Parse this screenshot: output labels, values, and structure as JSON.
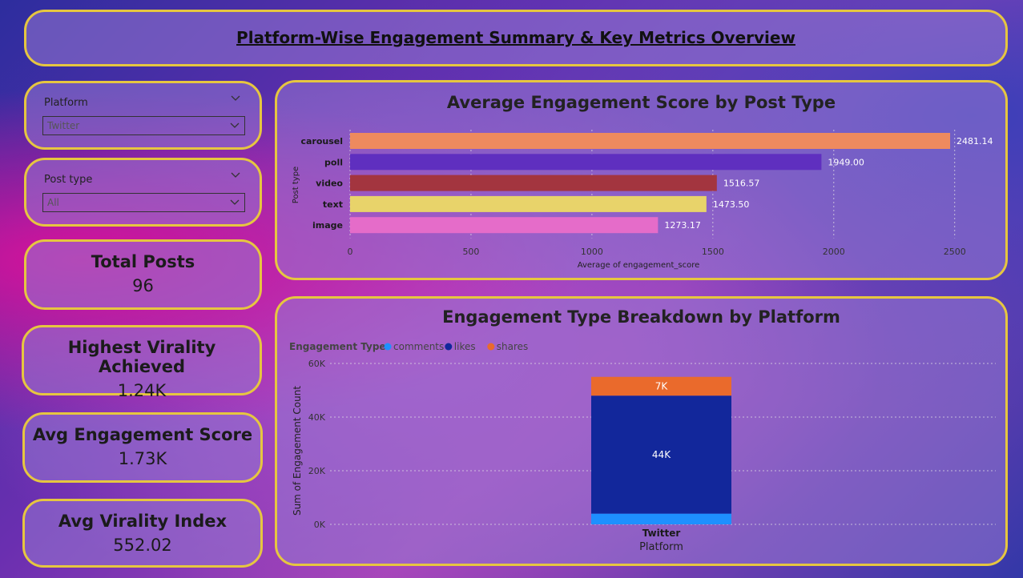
{
  "header": {
    "title": "Platform-Wise Engagement Summary & Key Metrics Overview"
  },
  "slicers": {
    "platform": {
      "label": "Platform",
      "value": "Twitter"
    },
    "post_type": {
      "label": "Post type",
      "value": "All"
    }
  },
  "cards": {
    "total_posts": {
      "label": "Total Posts",
      "value": "96"
    },
    "highest_virality": {
      "label": "Highest Virality Achieved",
      "value": "1.24K"
    },
    "avg_engagement": {
      "label": "Avg Engagement Score",
      "value": "1.73K"
    },
    "avg_virality": {
      "label": "Avg Virality Index",
      "value": "552.02"
    }
  },
  "chart_data": [
    {
      "type": "bar",
      "orientation": "horizontal",
      "title": "Average Engagement Score by Post Type",
      "xlabel": "Average of engagement_score",
      "ylabel": "Post type",
      "categories": [
        "carousel",
        "poll",
        "video",
        "text",
        "image"
      ],
      "values": [
        2481.14,
        1949.0,
        1516.57,
        1473.5,
        1273.17
      ],
      "value_labels": [
        "2481.14",
        "1949.00",
        "1516.57",
        "1473.50",
        "1273.17"
      ],
      "colors": [
        "#ee8a5e",
        "#5f2fbf",
        "#a3353f",
        "#e8d36a",
        "#e56cc9"
      ],
      "xlim": [
        0,
        2650
      ],
      "xticks": [
        0,
        500,
        1000,
        1500,
        2000,
        2500
      ],
      "xtick_labels": [
        "0",
        "500",
        "1000",
        "1500",
        "2000",
        "2500"
      ],
      "grid": true
    },
    {
      "type": "bar",
      "stacked": true,
      "title": "Engagement Type Breakdown by Platform",
      "xlabel": "Platform",
      "ylabel": "Sum of Engagement Count",
      "legend_title": "Engagement Type",
      "legend_position": "top-left",
      "categories": [
        "Twitter"
      ],
      "series": [
        {
          "name": "comments",
          "color": "#1e90ff",
          "values": [
            4000
          ],
          "label": ""
        },
        {
          "name": "likes",
          "color": "#12279b",
          "values": [
            44000
          ],
          "label": "44K"
        },
        {
          "name": "shares",
          "color": "#ea6a2c",
          "values": [
            7000
          ],
          "label": "7K"
        }
      ],
      "ylim": [
        0,
        60000
      ],
      "yticks": [
        0,
        20000,
        40000,
        60000
      ],
      "ytick_labels": [
        "0K",
        "20K",
        "40K",
        "60K"
      ],
      "grid": true
    }
  ]
}
